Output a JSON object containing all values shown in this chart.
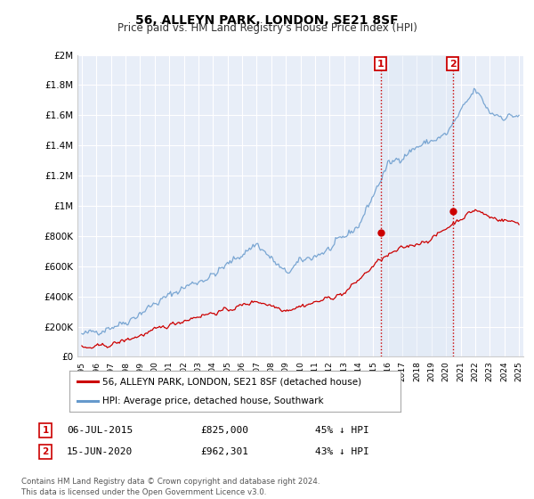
{
  "title": "56, ALLEYN PARK, LONDON, SE21 8SF",
  "subtitle": "Price paid vs. HM Land Registry's House Price Index (HPI)",
  "hpi_color": "#6699cc",
  "price_color": "#cc0000",
  "background_color": "#e8eef8",
  "plot_bg": "#ffffff",
  "shade_color": "#dce8f5",
  "ylim": [
    0,
    2000000
  ],
  "yticks": [
    0,
    200000,
    400000,
    600000,
    800000,
    1000000,
    1200000,
    1400000,
    1600000,
    1800000,
    2000000
  ],
  "ytick_labels": [
    "£0",
    "£200K",
    "£400K",
    "£600K",
    "£800K",
    "£1M",
    "£1.2M",
    "£1.4M",
    "£1.6M",
    "£1.8M",
    "£2M"
  ],
  "xstart_year": 1995,
  "xend_year": 2025,
  "transaction1": {
    "date": "06-JUL-2015",
    "price": 825000,
    "label": "1",
    "year": 2015.5
  },
  "transaction2": {
    "date": "15-JUN-2020",
    "price": 962301,
    "label": "2",
    "year": 2020.45
  },
  "legend_line1": "56, ALLEYN PARK, LONDON, SE21 8SF (detached house)",
  "legend_line2": "HPI: Average price, detached house, Southwark",
  "table_row1": [
    "1",
    "06-JUL-2015",
    "£825,000",
    "45% ↓ HPI"
  ],
  "table_row2": [
    "2",
    "15-JUN-2020",
    "£962,301",
    "43% ↓ HPI"
  ],
  "footer": "Contains HM Land Registry data © Crown copyright and database right 2024.\nThis data is licensed under the Open Government Licence v3.0."
}
